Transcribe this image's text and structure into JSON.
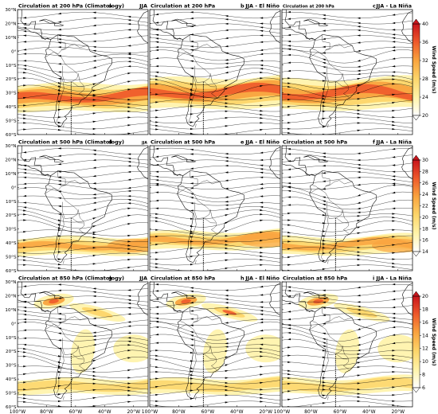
{
  "chart_data": [
    {
      "type": "heatmap",
      "panels": [
        {
          "letter": "a",
          "title": "Circulation at 200 hPa (Climatology)",
          "season": "JJA"
        },
        {
          "letter": "b",
          "title": "Circulation at 200 hPa",
          "season": "JJA - El Niño"
        },
        {
          "letter": "c",
          "title": "Circulation at 200 hPa",
          "season": "JJA - La Niña"
        }
      ],
      "jet_core_lat": [
        -33,
        -30,
        -31
      ],
      "jet_peak_speed": [
        36,
        38,
        38
      ],
      "colorbar": {
        "label": "Wind Speed (m/s)",
        "ticks": [
          20,
          24,
          28,
          32,
          36,
          40
        ],
        "range": [
          20,
          40
        ]
      }
    },
    {
      "type": "heatmap",
      "panels": [
        {
          "letter": "d",
          "title": "Circulation at 500 hPa (Climatology)",
          "season": "JJA"
        },
        {
          "letter": "e",
          "title": "Circulation at 500 hPa",
          "season": "JJA - El Niño"
        },
        {
          "letter": "f",
          "title": "Circulation at 500 hPa",
          "season": "JJA - La Niña"
        }
      ],
      "jet_core_lat": [
        -42,
        -38,
        -42
      ],
      "jet_peak_speed": [
        24,
        24,
        22
      ],
      "colorbar": {
        "label": "Wind Speed (m/s)",
        "ticks": [
          14,
          16,
          18,
          20,
          22,
          24,
          26,
          28,
          30
        ],
        "range": [
          14,
          30
        ]
      }
    },
    {
      "type": "heatmap",
      "panels": [
        {
          "letter": "g",
          "title": "Circulation at 850 hPa (Climatology)",
          "season": "JJA"
        },
        {
          "letter": "h",
          "title": "Circulation at 850 hPa",
          "season": "JJA - El Niño"
        },
        {
          "letter": "i",
          "title": "Circulation at 850 hPa",
          "season": "JJA - La Niña"
        }
      ],
      "jet_core_lat": [
        -45,
        -45,
        -45
      ],
      "jet_peak_speed": [
        14,
        16,
        14
      ],
      "colorbar": {
        "label": "Wind Speed (m/s)",
        "ticks": [
          6,
          8,
          10,
          12,
          14,
          16,
          18,
          20
        ],
        "range": [
          6,
          20
        ]
      }
    }
  ],
  "axes": {
    "lat_ticks": [
      "30°N",
      "20°N",
      "10°N",
      "0°",
      "10°S",
      "20°S",
      "30°S",
      "40°S",
      "50°S",
      "60°S"
    ],
    "lat_values": [
      30,
      20,
      10,
      0,
      -10,
      -20,
      -30,
      -40,
      -50,
      -60
    ],
    "lon_ticks": [
      "100°W",
      "80°W",
      "60°W",
      "40°W",
      "20°W"
    ],
    "lon_values": [
      -100,
      -80,
      -60,
      -40,
      -20
    ],
    "extent": {
      "lon": [
        -100,
        -10
      ],
      "lat": [
        -60,
        30
      ]
    }
  },
  "colors": {
    "c20": "#ffffff",
    "c24": "#fff3a8",
    "c28": "#fdd56a",
    "c32": "#f9a43f",
    "c36": "#ee5a2b",
    "c40": "#c8151c",
    "land": "#ffffff",
    "stream": "#000000"
  }
}
